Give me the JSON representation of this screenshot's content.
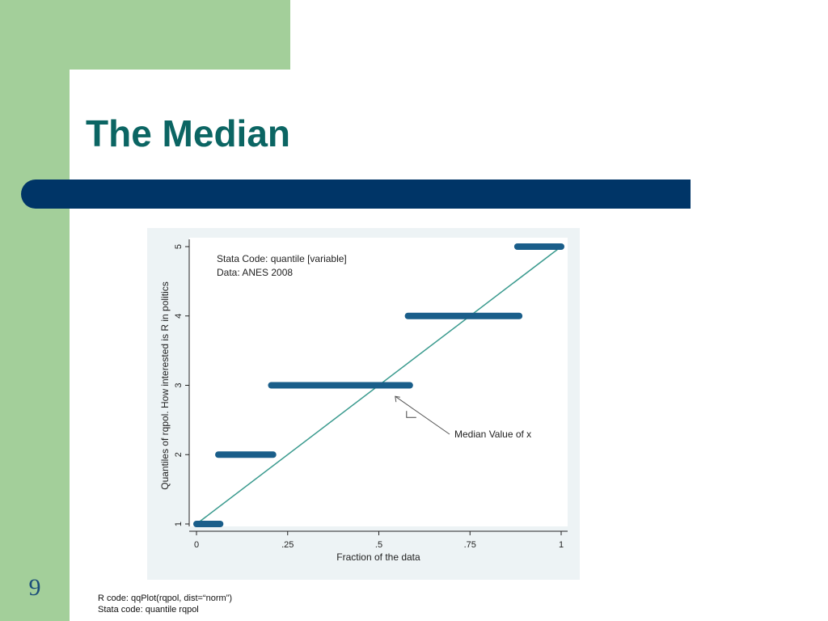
{
  "slide": {
    "title": "The Median",
    "number": "9",
    "colors": {
      "side_panel": "#a3cf9a",
      "title_text": "#0b6563",
      "title_bar": "#003567",
      "slide_number": "#1a4d7a"
    },
    "code_notes": {
      "r_code": "R code: qqPlot(rqpol, dist=“norm”)",
      "stata_code": "Stata code: quantile rqpol"
    }
  },
  "chart_data": {
    "type": "scatter",
    "xlabel": "Fraction of the data",
    "ylabel": "Quantiles of rqpol. How interested is R in politics",
    "xlim": [
      0,
      1
    ],
    "ylim": [
      1,
      5
    ],
    "x_ticks": [
      0,
      0.25,
      0.5,
      0.75,
      1
    ],
    "x_tick_labels": [
      "0",
      ".25",
      ".5",
      ".75",
      "1"
    ],
    "y_ticks": [
      1,
      2,
      3,
      4,
      5
    ],
    "y_tick_labels": [
      "1",
      "2",
      "3",
      "4",
      "5"
    ],
    "grid": false,
    "annotations": [
      "Stata Code: quantile [variable]",
      "Data:  ANES  2008"
    ],
    "callout": {
      "text": "Median Value of x",
      "target": {
        "x": 0.545,
        "y": 2.84
      }
    },
    "series": [
      {
        "kind": "quantile_steps",
        "color": "#1a5e8a",
        "segments": [
          {
            "x_start": 0.0,
            "x_end": 0.065,
            "y": 1
          },
          {
            "x_start": 0.06,
            "x_end": 0.21,
            "y": 2
          },
          {
            "x_start": 0.205,
            "x_end": 0.585,
            "y": 3
          },
          {
            "x_start": 0.58,
            "x_end": 0.885,
            "y": 4
          },
          {
            "x_start": 0.88,
            "x_end": 1.0,
            "y": 5
          }
        ]
      },
      {
        "kind": "reference_line",
        "color": "#3a9a8e",
        "points": [
          {
            "x": 0,
            "y": 1
          },
          {
            "x": 1,
            "y": 5
          }
        ]
      }
    ]
  }
}
